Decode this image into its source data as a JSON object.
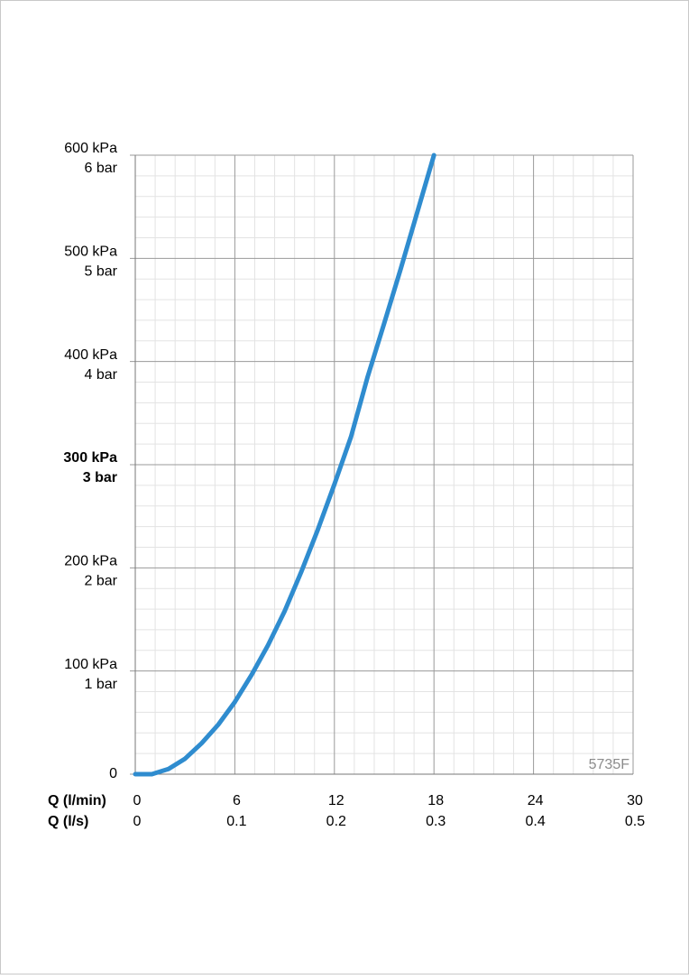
{
  "chart_data": {
    "type": "line",
    "x_label": "Q (l/min)",
    "x2_label": "Q (l/s)",
    "annotation": "5735F",
    "x": [
      0,
      1,
      2,
      3,
      4,
      5,
      6,
      7,
      8,
      9,
      10,
      11,
      12,
      13,
      14,
      15,
      16,
      17,
      18
    ],
    "series": [
      {
        "color": "#2f8ccf",
        "values": [
          0,
          0,
          5,
          15,
          30,
          48,
          70,
          96,
          125,
          158,
          196,
          237,
          281,
          327,
          385,
          437,
          490,
          545,
          600
        ]
      }
    ],
    "xlim": [
      0,
      30
    ],
    "ylim": [
      0,
      600
    ],
    "xticks": [
      0,
      6,
      12,
      18,
      24,
      30
    ],
    "x2ticks": [
      0,
      {
        "value": 6,
        "label": "0.1"
      },
      {
        "value": 12,
        "label": "0.2"
      },
      {
        "value": 18,
        "label": "0.3"
      },
      {
        "value": 24,
        "label": "0.4"
      },
      {
        "value": 30,
        "label": "0.5"
      }
    ],
    "yticks": [
      0,
      {
        "value": 100,
        "label": "100 kPa"
      },
      {
        "value": 200,
        "label": "200 kPa"
      },
      {
        "value": 300,
        "label": "300 kPa"
      },
      {
        "value": 400,
        "label": "400 kPa"
      },
      {
        "value": 500,
        "label": "500 kPa"
      },
      {
        "value": 600,
        "label": "600 kPa"
      }
    ],
    "ybar_ticks": [
      {
        "value": 100,
        "label": "1 bar"
      },
      {
        "value": 200,
        "label": "2 bar"
      },
      {
        "value": 300,
        "label": "3 bar"
      },
      {
        "value": 400,
        "label": "4 bar"
      },
      {
        "value": 500,
        "label": "5 bar"
      },
      {
        "value": 600,
        "label": "6 bar"
      }
    ],
    "bold_ytick": 300,
    "grid": true,
    "minor_divisions": 5
  }
}
